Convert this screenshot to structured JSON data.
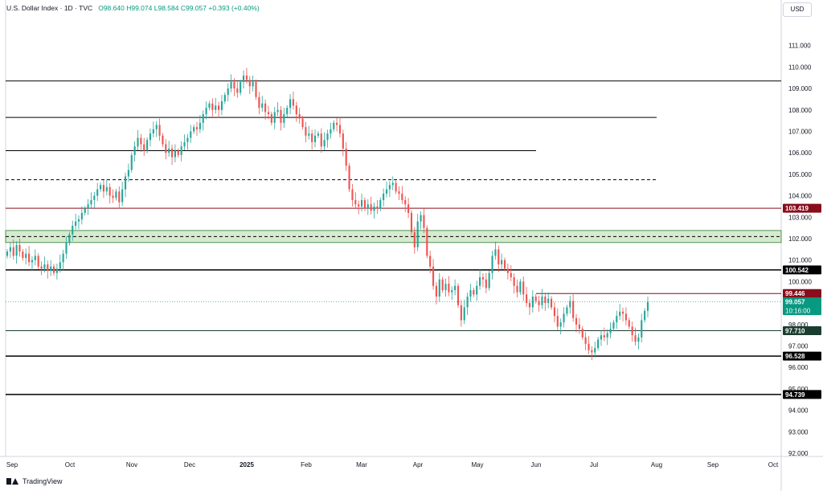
{
  "header": {
    "symbol": "U.S. Dollar Index",
    "interval": "1D",
    "exchange": "TVC",
    "open": "O98.640",
    "high": "H99.074",
    "low": "L98.584",
    "close": "C99.057",
    "change": "+0.393 (+0.40%)"
  },
  "currency_label": "USD",
  "branding": "TradingView",
  "colors": {
    "up": "#26a69a",
    "down": "#ef5350",
    "resistance": "#880e1c",
    "zone_fill": "#cfe6c8",
    "zone_border": "#2e7d32",
    "current": "#089981",
    "line": "#000000"
  },
  "chart_data": {
    "type": "candlestick",
    "ylim": [
      91.85,
      112.0
    ],
    "yticks": [
      "111.000",
      "110.000",
      "109.000",
      "108.000",
      "107.000",
      "106.000",
      "105.000",
      "104.000",
      "103.000",
      "102.000",
      "101.000",
      "100.000",
      "98.000",
      "97.000",
      "96.000",
      "95.000",
      "94.000",
      "93.000",
      "92.000"
    ],
    "xticks": [
      "Sep",
      "Oct",
      "Nov",
      "Dec",
      "2025",
      "Feb",
      "Mar",
      "Apr",
      "May",
      "Jun",
      "Jul",
      "Aug",
      "Sep",
      "Oct"
    ],
    "horizontal_levels": [
      {
        "value": 109.35,
        "style": "solid",
        "color": "#000000",
        "start": "Sep",
        "end": "right"
      },
      {
        "value": 107.65,
        "style": "solid",
        "color": "#000000",
        "start": "Sep",
        "end": "Aug"
      },
      {
        "value": 106.1,
        "style": "solid",
        "color": "#000000",
        "start": "Sep",
        "end": "Jun"
      },
      {
        "value": 104.75,
        "style": "dashed",
        "color": "#000000",
        "start": "Sep",
        "end": "Aug"
      },
      {
        "value": 103.419,
        "label": "103.419",
        "style": "solid",
        "color": "#880e1c",
        "start": "Sep",
        "end": "right"
      },
      {
        "value": 102.1,
        "style": "dashed",
        "color": "#000000",
        "start": "Sep",
        "end": "right"
      },
      {
        "value": 100.542,
        "label": "100.542",
        "style": "solid-thick",
        "color": "#000000",
        "start": "Sep",
        "end": "right"
      },
      {
        "value": 99.446,
        "label": "99.446",
        "style": "solid",
        "color": "#880e1c",
        "start": "Jun",
        "end": "right"
      },
      {
        "value": 97.71,
        "label": "97.710",
        "style": "solid",
        "color": "#1b3d2f",
        "start": "Sep",
        "end": "right"
      },
      {
        "value": 96.528,
        "label": "96.528",
        "style": "solid-thick",
        "color": "#000000",
        "start": "Sep",
        "end": "right"
      },
      {
        "value": 94.739,
        "label": "94.739",
        "style": "solid-thick",
        "color": "#000000",
        "start": "Sep",
        "end": "right"
      }
    ],
    "zone": {
      "top": 102.38,
      "bottom": 101.82
    },
    "current_price": {
      "value": 99.057,
      "label": "99.057",
      "countdown": "10:16:00"
    },
    "closes": [
      101.4,
      101.6,
      101.2,
      101.7,
      101.4,
      101.1,
      101.3,
      100.9,
      101.0,
      101.2,
      100.7,
      100.6,
      100.8,
      100.5,
      100.7,
      100.4,
      100.6,
      100.9,
      101.3,
      101.8,
      102.2,
      102.6,
      102.8,
      102.9,
      103.2,
      103.4,
      103.6,
      103.8,
      104.0,
      104.3,
      104.5,
      104.2,
      104.4,
      104.0,
      103.9,
      104.2,
      103.7,
      104.3,
      104.9,
      105.2,
      105.9,
      106.3,
      106.7,
      106.4,
      106.1,
      106.6,
      106.9,
      107.1,
      107.3,
      106.8,
      106.4,
      106.0,
      106.2,
      105.8,
      106.1,
      105.9,
      106.3,
      106.5,
      106.7,
      107.0,
      107.2,
      107.1,
      107.4,
      107.8,
      108.1,
      108.3,
      108.0,
      108.2,
      108.0,
      108.4,
      108.7,
      109.0,
      109.3,
      109.0,
      108.8,
      109.3,
      109.6,
      109.4,
      109.1,
      109.3,
      108.6,
      108.1,
      108.3,
      107.9,
      107.8,
      107.4,
      107.9,
      108.0,
      107.4,
      107.8,
      108.1,
      108.5,
      108.2,
      107.8,
      107.6,
      107.2,
      106.8,
      106.9,
      106.5,
      106.8,
      106.9,
      106.3,
      106.6,
      106.9,
      107.1,
      107.4,
      107.3,
      106.9,
      106.2,
      105.4,
      104.3,
      103.8,
      103.6,
      103.5,
      103.8,
      103.4,
      103.6,
      103.3,
      103.5,
      103.4,
      103.8,
      104.1,
      104.3,
      104.5,
      104.6,
      104.2,
      104.1,
      103.8,
      103.6,
      103.2,
      102.3,
      101.6,
      102.8,
      103.1,
      102.5,
      101.2,
      100.7,
      99.8,
      99.3,
      100.1,
      99.6,
      99.9,
      99.5,
      99.6,
      99.8,
      98.9,
      98.2,
      98.8,
      99.3,
      99.6,
      99.4,
      99.8,
      100.2,
      100.1,
      99.7,
      100.4,
      101.2,
      101.5,
      100.8,
      101.0,
      100.6,
      100.4,
      100.2,
      99.8,
      99.5,
      100.0,
      99.4,
      99.0,
      98.8,
      99.3,
      99.1,
      98.9,
      99.3,
      99.0,
      99.2,
      98.8,
      98.4,
      97.9,
      98.1,
      98.5,
      98.8,
      99.1,
      98.3,
      98.0,
      97.8,
      97.4,
      97.1,
      96.8,
      96.7,
      96.9,
      97.3,
      97.5,
      97.4,
      97.6,
      97.8,
      98.1,
      98.4,
      98.6,
      98.5,
      98.2,
      97.9,
      97.5,
      97.2,
      97.4,
      98.2,
      98.64,
      99.057
    ]
  }
}
